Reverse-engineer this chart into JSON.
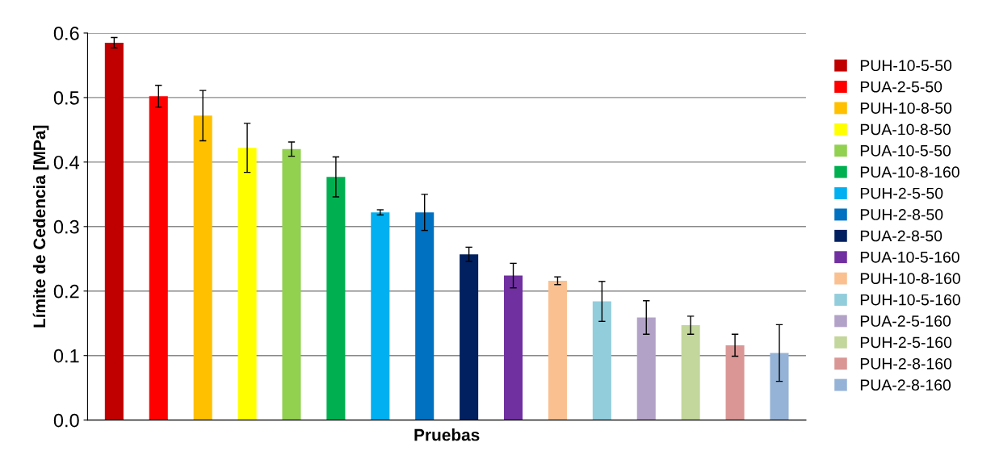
{
  "chart_data": {
    "type": "bar",
    "xlabel": "Pruebas",
    "ylabel": "Límite de Cedencia [MPa]",
    "categories": [
      null,
      null,
      null,
      null,
      null,
      null,
      null,
      null,
      null,
      null,
      null,
      null,
      null,
      null,
      null,
      null
    ],
    "ylim": [
      0,
      0.6
    ],
    "yticks": [
      {
        "value": 0,
        "label": "0.0"
      },
      0.1,
      0.2,
      0.3,
      0.4,
      0.5,
      0.6
    ],
    "grid": "y",
    "legend": "right",
    "series": [
      {
        "name": "PUH-10-5-50",
        "color": "#c00000",
        "values": [
          0.585,
          null,
          null,
          null,
          null,
          null,
          null,
          null,
          null,
          null,
          null,
          null,
          null,
          null,
          null,
          null
        ],
        "errors": [
          0.008,
          null,
          null,
          null,
          null,
          null,
          null,
          null,
          null,
          null,
          null,
          null,
          null,
          null,
          null,
          null
        ]
      },
      {
        "name": "PUA-2-5-50",
        "color": "#ff0000",
        "values": [
          null,
          0.502,
          null,
          null,
          null,
          null,
          null,
          null,
          null,
          null,
          null,
          null,
          null,
          null,
          null,
          null
        ],
        "errors": [
          null,
          0.017,
          null,
          null,
          null,
          null,
          null,
          null,
          null,
          null,
          null,
          null,
          null,
          null,
          null,
          null
        ]
      },
      {
        "name": "PUH-10-8-50",
        "color": "#ffc000",
        "values": [
          null,
          null,
          0.472,
          null,
          null,
          null,
          null,
          null,
          null,
          null,
          null,
          null,
          null,
          null,
          null,
          null
        ],
        "errors": [
          null,
          null,
          0.039,
          null,
          null,
          null,
          null,
          null,
          null,
          null,
          null,
          null,
          null,
          null,
          null,
          null
        ]
      },
      {
        "name": "PUA-10-8-50",
        "color": "#ffff00",
        "values": [
          null,
          null,
          null,
          0.422,
          null,
          null,
          null,
          null,
          null,
          null,
          null,
          null,
          null,
          null,
          null,
          null
        ],
        "errors": [
          null,
          null,
          null,
          0.038,
          null,
          null,
          null,
          null,
          null,
          null,
          null,
          null,
          null,
          null,
          null,
          null
        ]
      },
      {
        "name": "PUA-10-5-50",
        "color": "#92d050",
        "values": [
          null,
          null,
          null,
          null,
          0.42,
          null,
          null,
          null,
          null,
          null,
          null,
          null,
          null,
          null,
          null,
          null
        ],
        "errors": [
          null,
          null,
          null,
          null,
          0.011,
          null,
          null,
          null,
          null,
          null,
          null,
          null,
          null,
          null,
          null,
          null
        ]
      },
      {
        "name": "PUA-10-8-160",
        "color": "#00b050",
        "values": [
          null,
          null,
          null,
          null,
          null,
          0.377,
          null,
          null,
          null,
          null,
          null,
          null,
          null,
          null,
          null,
          null
        ],
        "errors": [
          null,
          null,
          null,
          null,
          null,
          0.031,
          null,
          null,
          null,
          null,
          null,
          null,
          null,
          null,
          null,
          null
        ]
      },
      {
        "name": "PUH-2-5-50",
        "color": "#00b0f0",
        "values": [
          null,
          null,
          null,
          null,
          null,
          null,
          0.322,
          null,
          null,
          null,
          null,
          null,
          null,
          null,
          null,
          null
        ],
        "errors": [
          null,
          null,
          null,
          null,
          null,
          null,
          0.004,
          null,
          null,
          null,
          null,
          null,
          null,
          null,
          null,
          null
        ]
      },
      {
        "name": "PUH-2-8-50",
        "color": "#0070c0",
        "values": [
          null,
          null,
          null,
          null,
          null,
          null,
          null,
          0.322,
          null,
          null,
          null,
          null,
          null,
          null,
          null,
          null
        ],
        "errors": [
          null,
          null,
          null,
          null,
          null,
          null,
          null,
          0.028,
          null,
          null,
          null,
          null,
          null,
          null,
          null,
          null
        ]
      },
      {
        "name": "PUA-2-8-50",
        "color": "#002060",
        "values": [
          null,
          null,
          null,
          null,
          null,
          null,
          null,
          null,
          0.257,
          null,
          null,
          null,
          null,
          null,
          null,
          null
        ],
        "errors": [
          null,
          null,
          null,
          null,
          null,
          null,
          null,
          null,
          0.011,
          null,
          null,
          null,
          null,
          null,
          null,
          null
        ]
      },
      {
        "name": "PUA-10-5-160",
        "color": "#7030a0",
        "values": [
          null,
          null,
          null,
          null,
          null,
          null,
          null,
          null,
          null,
          0.224,
          null,
          null,
          null,
          null,
          null,
          null
        ],
        "errors": [
          null,
          null,
          null,
          null,
          null,
          null,
          null,
          null,
          null,
          0.019,
          null,
          null,
          null,
          null,
          null,
          null
        ]
      },
      {
        "name": "PUH-10-8-160",
        "color": "#fac090",
        "values": [
          null,
          null,
          null,
          null,
          null,
          null,
          null,
          null,
          null,
          null,
          0.216,
          null,
          null,
          null,
          null,
          null
        ],
        "errors": [
          null,
          null,
          null,
          null,
          null,
          null,
          null,
          null,
          null,
          null,
          0.006,
          null,
          null,
          null,
          null,
          null
        ]
      },
      {
        "name": "PUH-10-5-160",
        "color": "#92cddc",
        "values": [
          null,
          null,
          null,
          null,
          null,
          null,
          null,
          null,
          null,
          null,
          null,
          0.184,
          null,
          null,
          null,
          null
        ],
        "errors": [
          null,
          null,
          null,
          null,
          null,
          null,
          null,
          null,
          null,
          null,
          null,
          0.031,
          null,
          null,
          null,
          null
        ]
      },
      {
        "name": "PUA-2-5-160",
        "color": "#b3a2c7",
        "values": [
          null,
          null,
          null,
          null,
          null,
          null,
          null,
          null,
          null,
          null,
          null,
          null,
          0.159,
          null,
          null,
          null
        ],
        "errors": [
          null,
          null,
          null,
          null,
          null,
          null,
          null,
          null,
          null,
          null,
          null,
          null,
          0.026,
          null,
          null,
          null
        ]
      },
      {
        "name": "PUH-2-5-160",
        "color": "#c3d69b",
        "values": [
          null,
          null,
          null,
          null,
          null,
          null,
          null,
          null,
          null,
          null,
          null,
          null,
          null,
          0.147,
          null,
          null
        ],
        "errors": [
          null,
          null,
          null,
          null,
          null,
          null,
          null,
          null,
          null,
          null,
          null,
          null,
          null,
          0.014,
          null,
          null
        ]
      },
      {
        "name": "PUH-2-8-160",
        "color": "#d99694",
        "values": [
          null,
          null,
          null,
          null,
          null,
          null,
          null,
          null,
          null,
          null,
          null,
          null,
          null,
          null,
          0.116,
          null
        ],
        "errors": [
          null,
          null,
          null,
          null,
          null,
          null,
          null,
          null,
          null,
          null,
          null,
          null,
          null,
          null,
          0.017,
          null
        ]
      },
      {
        "name": "PUA-2-8-160",
        "color": "#95b3d7",
        "values": [
          null,
          null,
          null,
          null,
          null,
          null,
          null,
          null,
          null,
          null,
          null,
          null,
          null,
          null,
          null,
          0.104
        ],
        "errors": [
          null,
          null,
          null,
          null,
          null,
          null,
          null,
          null,
          null,
          null,
          null,
          null,
          null,
          null,
          null,
          0.044
        ]
      }
    ]
  }
}
